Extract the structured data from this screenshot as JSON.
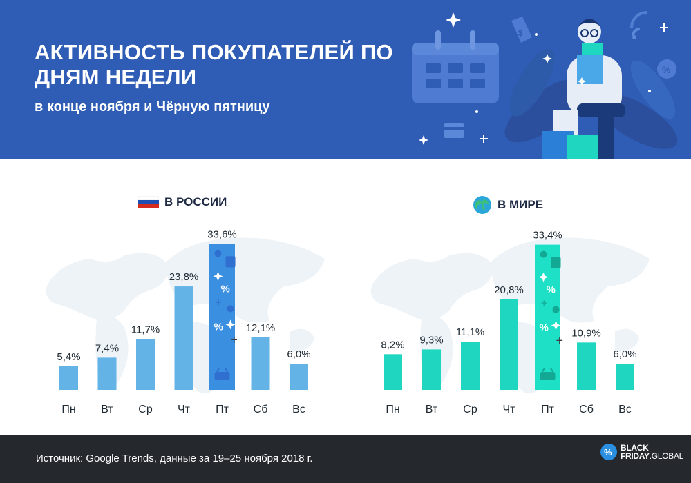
{
  "header": {
    "title": "АКТИВНОСТЬ ПОКУПАТЕЛЕЙ ПО ДНЯМ НЕДЕЛИ",
    "subtitle": "в конце ноября и Чёрную пятницу",
    "illustration_icons": [
      "calendar-icon",
      "person-with-shopping-bags",
      "price-tag-icon",
      "wifi-icon",
      "percent-icon",
      "credit-card-icon",
      "sparkle-icon"
    ]
  },
  "panels": {
    "russia": {
      "label": "В РОССИИ",
      "icon": "russia-flag-icon"
    },
    "world": {
      "label": "В МИРЕ",
      "icon": "globe-icon"
    }
  },
  "colors": {
    "header_bg": "#2f5db5",
    "russia_bar": "#63b3e6",
    "russia_highlight": "#3b8fe0",
    "world_bar": "#1fd6c0",
    "world_highlight": "#1ee0c6",
    "footer_bg": "#25292e"
  },
  "chart_data": [
    {
      "type": "bar",
      "title": "В РОССИИ",
      "categories": [
        "Пн",
        "Вт",
        "Ср",
        "Чт",
        "Пт",
        "Сб",
        "Вс"
      ],
      "values": [
        5.4,
        7.4,
        11.7,
        23.8,
        33.6,
        12.1,
        6.0
      ],
      "labels": [
        "5,4%",
        "7,4%",
        "11,7%",
        "23,8%",
        "33,6%",
        "12,1%",
        "6,0%"
      ],
      "highlight_index": 4,
      "unit": "%",
      "ylim": [
        0,
        35
      ]
    },
    {
      "type": "bar",
      "title": "В МИРЕ",
      "categories": [
        "Пн",
        "Вт",
        "Ср",
        "Чт",
        "Пт",
        "Сб",
        "Вс"
      ],
      "values": [
        8.2,
        9.3,
        11.1,
        20.8,
        33.4,
        10.9,
        6.0
      ],
      "labels": [
        "8,2%",
        "9,3%",
        "11,1%",
        "20,8%",
        "33,4%",
        "10,9%",
        "6,0%"
      ],
      "highlight_index": 4,
      "unit": "%",
      "ylim": [
        0,
        35
      ]
    }
  ],
  "footer": {
    "source": "Источник: Google Trends, данные за 19–25 ноября 2018 г.",
    "logo_line1": "BLACK",
    "logo_line2_a": "FRIDAY",
    "logo_line2_b": ".GLOBAL"
  }
}
